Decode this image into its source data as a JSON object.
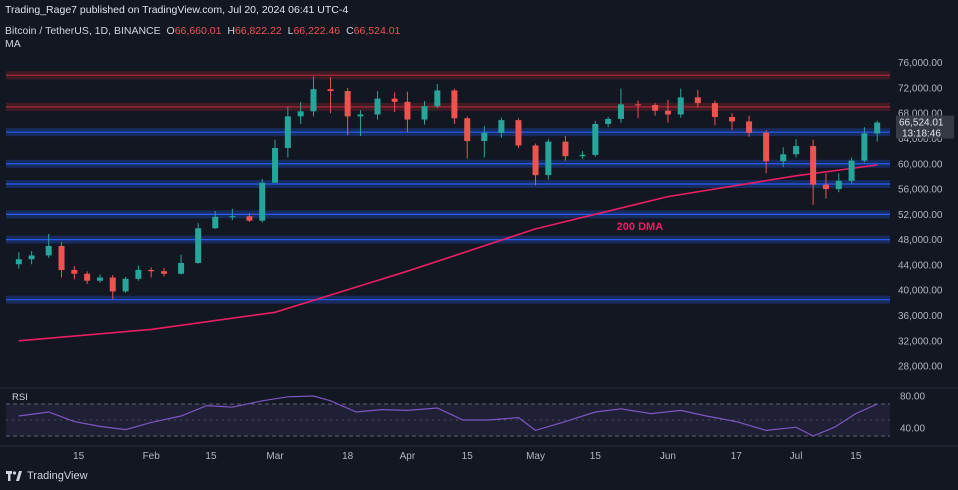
{
  "header": {
    "publisher_line": "Trading_Rage7 published on TradingView.com, Jul 20, 2024 06:41 UTC-4",
    "symbol": "Bitcoin / TetherUS, 1D, BINANCE",
    "open_label": "O",
    "open": "66,660.01",
    "high_label": "H",
    "high": "66,822.22",
    "low_label": "L",
    "low": "66,222.46",
    "close_label": "C",
    "close": "66,524.01",
    "ma_label": "MA"
  },
  "footer": {
    "brand": "TradingView"
  },
  "colors": {
    "background": "#131722",
    "bull": "#26a69a",
    "bear": "#ef5350",
    "ma": "#e91e63",
    "support": "#2962ff",
    "resistance": "#b22833",
    "rsi": "#7e57c2"
  },
  "chart_data": [
    {
      "type": "candlestick",
      "title": "Bitcoin / TetherUS, 1D, BINANCE",
      "annotation": "200 DMA",
      "ylim": [
        25000,
        78000
      ],
      "y_ticks": [
        "76,000.00",
        "72,000.00",
        "68,000.00",
        "64,000.00",
        "60,000.00",
        "56,000.00",
        "52,000.00",
        "48,000.00",
        "44,000.00",
        "40,000.00",
        "36,000.00",
        "32,000.00",
        "28,000.00"
      ],
      "y_tick_values": [
        76000,
        72000,
        68000,
        64000,
        60000,
        56000,
        52000,
        48000,
        44000,
        40000,
        36000,
        32000,
        28000
      ],
      "x_ticks": [
        "15",
        "Feb",
        "15",
        "Mar",
        "18",
        "Apr",
        "15",
        "May",
        "15",
        "Jun",
        "17",
        "Jul",
        "15"
      ],
      "x_tick_dates": [
        "2024-01-15",
        "2024-02-01",
        "2024-02-15",
        "2024-03-01",
        "2024-03-18",
        "2024-04-01",
        "2024-04-15",
        "2024-05-01",
        "2024-05-15",
        "2024-06-01",
        "2024-06-17",
        "2024-07-01",
        "2024-07-15"
      ],
      "price_label": "66,524.01",
      "countdown_label": "13:18:46",
      "horizontal_levels": [
        {
          "value": 74000,
          "kind": "resistance"
        },
        {
          "value": 69000,
          "kind": "resistance"
        },
        {
          "value": 65000,
          "kind": "support"
        },
        {
          "value": 60000,
          "kind": "support"
        },
        {
          "value": 56800,
          "kind": "support"
        },
        {
          "value": 52000,
          "kind": "support"
        },
        {
          "value": 48000,
          "kind": "support"
        },
        {
          "value": 38500,
          "kind": "support"
        }
      ],
      "ma_200": [
        {
          "date": "2024-01-01",
          "value": 32000
        },
        {
          "date": "2024-02-01",
          "value": 33800
        },
        {
          "date": "2024-03-01",
          "value": 36500
        },
        {
          "date": "2024-04-01",
          "value": 43000
        },
        {
          "date": "2024-05-01",
          "value": 49700
        },
        {
          "date": "2024-06-01",
          "value": 54800
        },
        {
          "date": "2024-07-01",
          "value": 58100
        },
        {
          "date": "2024-07-20",
          "value": 59800
        }
      ],
      "series": [
        {
          "x": [
            "2024-01-01",
            "2024-01-04",
            "2024-01-08",
            "2024-01-11",
            "2024-01-14",
            "2024-01-17",
            "2024-01-20",
            "2024-01-23",
            "2024-01-26",
            "2024-01-29",
            "2024-02-01",
            "2024-02-04",
            "2024-02-08",
            "2024-02-12",
            "2024-02-16",
            "2024-02-20",
            "2024-02-24",
            "2024-02-27",
            "2024-03-01",
            "2024-03-04",
            "2024-03-07",
            "2024-03-10",
            "2024-03-14",
            "2024-03-18",
            "2024-03-21",
            "2024-03-25",
            "2024-03-29",
            "2024-04-01",
            "2024-04-05",
            "2024-04-08",
            "2024-04-12",
            "2024-04-15",
            "2024-04-19",
            "2024-04-23",
            "2024-04-27",
            "2024-05-01",
            "2024-05-04",
            "2024-05-08",
            "2024-05-12",
            "2024-05-15",
            "2024-05-18",
            "2024-05-21",
            "2024-05-25",
            "2024-05-29",
            "2024-06-01",
            "2024-06-04",
            "2024-06-08",
            "2024-06-12",
            "2024-06-16",
            "2024-06-20",
            "2024-06-24",
            "2024-06-28",
            "2024-07-01",
            "2024-07-05",
            "2024-07-08",
            "2024-07-11",
            "2024-07-14",
            "2024-07-17",
            "2024-07-20"
          ],
          "close": [
            44900,
            45500,
            47000,
            43200,
            42600,
            41500,
            42000,
            39800,
            41800,
            43200,
            43000,
            42600,
            44300,
            49800,
            51600,
            51700,
            51000,
            57000,
            62500,
            67500,
            68300,
            71800,
            71500,
            67500,
            67800,
            70300,
            69800,
            67000,
            69100,
            71600,
            67200,
            63600,
            64900,
            66900,
            62900,
            58200,
            63500,
            61200,
            61400,
            66300,
            67100,
            69400,
            69300,
            68400,
            67800,
            70500,
            69600,
            67400,
            66700,
            64900,
            60400,
            61500,
            62800,
            56700,
            56000,
            57300,
            60500,
            64800,
            66524
          ],
          "open": [
            44100,
            44900,
            45500,
            47000,
            43200,
            42600,
            41500,
            42000,
            39800,
            41800,
            43200,
            43000,
            42600,
            44300,
            49800,
            51600,
            51700,
            51000,
            57000,
            62500,
            67500,
            68300,
            71800,
            71500,
            67500,
            67800,
            70300,
            69800,
            67000,
            69100,
            71600,
            67200,
            63600,
            64900,
            66900,
            62900,
            58200,
            63500,
            61200,
            61400,
            66300,
            67100,
            69400,
            69300,
            68400,
            67800,
            70500,
            69600,
            67400,
            66700,
            64900,
            60400,
            61500,
            62800,
            56700,
            56000,
            57300,
            60500,
            64800
          ],
          "high": [
            46000,
            46200,
            48900,
            47600,
            43800,
            43000,
            42500,
            42400,
            42100,
            43900,
            43600,
            43500,
            45600,
            50600,
            52500,
            52900,
            52200,
            57600,
            63800,
            69000,
            69800,
            73800,
            73700,
            72000,
            68500,
            71500,
            71300,
            71400,
            69900,
            72600,
            71900,
            67500,
            66000,
            67300,
            67200,
            63200,
            63900,
            64400,
            62000,
            66800,
            67400,
            71900,
            70000,
            69600,
            70100,
            71900,
            71700,
            70000,
            68000,
            67600,
            65300,
            62600,
            63900,
            63800,
            58500,
            58500,
            61000,
            65800,
            66822
          ],
          "low": [
            43400,
            44100,
            45100,
            42000,
            41700,
            41000,
            41200,
            38600,
            39600,
            41500,
            42000,
            42200,
            42500,
            44200,
            49700,
            51100,
            50800,
            50700,
            57000,
            61000,
            66300,
            67500,
            68000,
            64500,
            64400,
            67000,
            68200,
            65000,
            66200,
            68800,
            66300,
            60800,
            61000,
            64100,
            62500,
            56600,
            57500,
            60500,
            60800,
            61100,
            65800,
            66500,
            67200,
            67600,
            66500,
            67300,
            68900,
            66100,
            65300,
            64300,
            58500,
            59500,
            61000,
            53500,
            54500,
            55500,
            56900,
            60200,
            63500
          ]
        }
      ]
    },
    {
      "type": "line",
      "title": "RSI",
      "ylim": [
        25,
        85
      ],
      "y_ticks": [
        "80.00",
        "40.00"
      ],
      "y_tick_values": [
        80,
        40
      ],
      "bands": [
        70,
        30
      ],
      "series": [
        {
          "x": [
            "2024-01-01",
            "2024-01-08",
            "2024-01-14",
            "2024-01-20",
            "2024-01-26",
            "2024-02-01",
            "2024-02-08",
            "2024-02-14",
            "2024-02-20",
            "2024-02-27",
            "2024-03-04",
            "2024-03-10",
            "2024-03-14",
            "2024-03-20",
            "2024-03-26",
            "2024-04-01",
            "2024-04-08",
            "2024-04-14",
            "2024-04-20",
            "2024-04-27",
            "2024-05-01",
            "2024-05-08",
            "2024-05-15",
            "2024-05-21",
            "2024-05-28",
            "2024-06-04",
            "2024-06-10",
            "2024-06-17",
            "2024-06-24",
            "2024-07-01",
            "2024-07-05",
            "2024-07-10",
            "2024-07-15",
            "2024-07-20"
          ],
          "values": [
            55,
            60,
            48,
            42,
            38,
            47,
            55,
            68,
            66,
            74,
            79,
            80,
            74,
            60,
            63,
            62,
            65,
            50,
            50,
            53,
            37,
            48,
            60,
            64,
            58,
            62,
            55,
            48,
            37,
            41,
            30,
            41,
            58,
            70
          ]
        }
      ]
    }
  ]
}
